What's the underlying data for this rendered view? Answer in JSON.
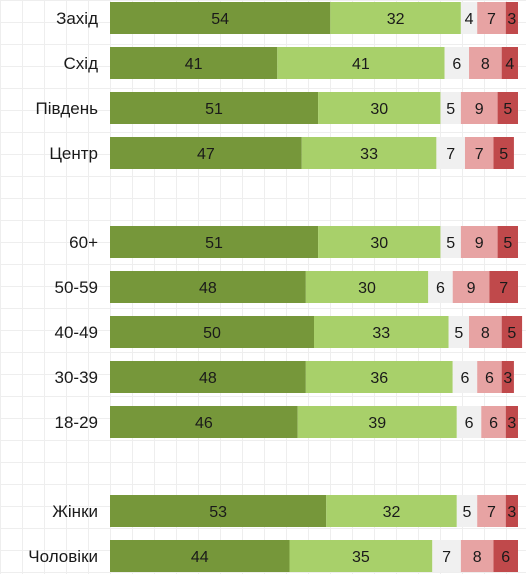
{
  "chart_data": {
    "type": "bar",
    "orientation": "horizontal",
    "stacked": true,
    "categories": [
      "Захід",
      "Схід",
      "Південь",
      "Центр",
      "60+",
      "50-59",
      "40-49",
      "30-39",
      "18-29",
      "Жінки",
      "Чоловіки"
    ],
    "groups": [
      [
        "Захід",
        "Схід",
        "Південь",
        "Центр"
      ],
      [
        "60+",
        "50-59",
        "40-49",
        "30-39",
        "18-29"
      ],
      [
        "Жінки",
        "Чоловіки"
      ]
    ],
    "series": [
      {
        "values": [
          54,
          41,
          51,
          47,
          51,
          48,
          50,
          48,
          46,
          53,
          44
        ],
        "color": "#76973a"
      },
      {
        "values": [
          32,
          41,
          30,
          33,
          30,
          30,
          33,
          36,
          39,
          32,
          35
        ],
        "color": "#a8d06a"
      },
      {
        "values": [
          4,
          6,
          5,
          7,
          5,
          6,
          5,
          6,
          6,
          5,
          7
        ],
        "color": "#f0f0f0"
      },
      {
        "values": [
          7,
          8,
          9,
          7,
          9,
          9,
          8,
          6,
          6,
          7,
          8
        ],
        "color": "#e7a3a3"
      },
      {
        "values": [
          3,
          4,
          5,
          5,
          5,
          7,
          5,
          3,
          3,
          3,
          6
        ],
        "color": "#c0494b"
      }
    ],
    "xlim": [
      0,
      100
    ],
    "legend": "none",
    "grid": true
  }
}
